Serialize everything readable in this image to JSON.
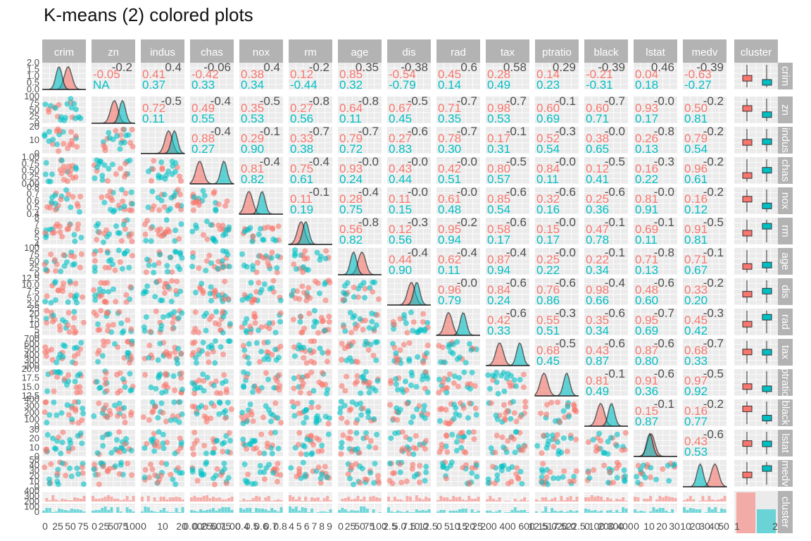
{
  "title": "K-means (2) colored plots",
  "colors": {
    "cluster1": "#F8766D",
    "cluster2": "#00BFC4",
    "panel": "#EBEBEB",
    "strip": "#B3B3B3",
    "strip_text": "#ffffff",
    "grid": "#ffffff",
    "tick_text": "#4D4D4D"
  },
  "chart_data": {
    "type": "scatter-matrix",
    "variables": [
      "crim",
      "zn",
      "indus",
      "chas",
      "nox",
      "rm",
      "age",
      "dis",
      "rad",
      "tax",
      "ptratio",
      "black",
      "lstat",
      "medv",
      "cluster"
    ],
    "column_labels": [
      "crim",
      "zn",
      "indus",
      "chas",
      "nox",
      "rm",
      "age",
      "dis",
      "rad",
      "tax",
      "ptratio",
      "black",
      "lstat",
      "medv",
      "cluster"
    ],
    "row_labels": [
      "crim",
      "zn",
      "indus",
      "chas",
      "nox",
      "rm",
      "age",
      "dis",
      "rad",
      "tax",
      "ptratio",
      "black",
      "lstat",
      "medv",
      "cluster"
    ],
    "series": [
      {
        "name": "1",
        "color": "#F8766D"
      },
      {
        "name": "2",
        "color": "#00BFC4"
      }
    ],
    "x_tick_labels": [
      [
        "0",
        "25",
        "50",
        "75"
      ],
      [
        "0",
        "25",
        "50",
        "75",
        "100"
      ],
      [
        "0",
        "10",
        "20"
      ],
      [
        "0.00",
        "0.25",
        "0.50",
        "0.75",
        "1.00"
      ],
      [
        "0.4",
        "0.5",
        "0.6",
        "0.7",
        "0.8"
      ],
      [
        "4",
        "5",
        "6",
        "7",
        "8",
        "9"
      ],
      [
        "0",
        "25",
        "50",
        "75",
        "100"
      ],
      [
        "2.5",
        "5.0",
        "7.5",
        "10.0",
        "12.5"
      ],
      [
        "0",
        "5",
        "10",
        "15",
        "20",
        "25"
      ],
      [
        "200",
        "400",
        "600"
      ],
      [
        "12.5",
        "15.0",
        "17.5",
        "20.0",
        "22.5"
      ],
      [
        "0",
        "100",
        "200",
        "300",
        "400"
      ],
      [
        "0",
        "10",
        "20",
        "30"
      ],
      [
        "10",
        "20",
        "30",
        "40",
        "50"
      ],
      [
        "1",
        "2"
      ]
    ],
    "y_tick_labels": [
      [
        "0.0",
        "0.5",
        "1.0",
        "1.5",
        "2.0"
      ],
      [
        "0",
        "25",
        "50",
        "75",
        "100"
      ],
      [
        "0",
        "10",
        "20"
      ],
      [
        "0.00",
        "0.25",
        "0.50",
        "0.75",
        "1.00"
      ],
      [
        "0.4",
        "0.5",
        "0.6",
        "0.7",
        "0.8"
      ],
      [
        "4",
        "5",
        "6",
        "7",
        "8"
      ],
      [
        "0",
        "25",
        "50",
        "75",
        "100"
      ],
      [
        "2.5",
        "5.0",
        "7.5",
        "10.0",
        "12.5"
      ],
      [
        "0",
        "5",
        "10",
        "15",
        "20",
        "25"
      ],
      [
        "200",
        "300",
        "400",
        "500",
        "600",
        "700"
      ],
      [
        "12.5",
        "15.0",
        "17.5",
        "20.0"
      ],
      [
        "0",
        "100",
        "200",
        "300",
        "400"
      ],
      [
        "0",
        "10",
        "20",
        "30"
      ],
      [
        "0",
        "10",
        "20",
        "30",
        "40",
        "50"
      ],
      [
        "0",
        "100",
        "200",
        "300",
        "400"
      ]
    ],
    "correlation_labels": [
      {
        "row": 0,
        "col": 1,
        "corr": "-0.2",
        "c1": "-0.05",
        "c2": "NA"
      },
      {
        "row": 0,
        "col": 2,
        "corr": "0.4",
        "c1": "0.41",
        "c2": "0.37"
      },
      {
        "row": 0,
        "col": 3,
        "corr": "-0.06",
        "c1": "-0.42",
        "c2": "0.33"
      },
      {
        "row": 0,
        "col": 4,
        "corr": "0.4",
        "c1": "0.38",
        "c2": "0.34"
      },
      {
        "row": 0,
        "col": 5,
        "corr": "-0.2",
        "c1": "0.12",
        "c2": "-0.44"
      },
      {
        "row": 0,
        "col": 6,
        "corr": "0.35",
        "c1": "0.85",
        "c2": "0.32"
      },
      {
        "row": 0,
        "col": 7,
        "corr": "-0.38",
        "c1": "-0.54",
        "c2": "-0.79"
      },
      {
        "row": 0,
        "col": 8,
        "corr": "0.6",
        "c1": "0.45",
        "c2": "0.14"
      },
      {
        "row": 0,
        "col": 9,
        "corr": "0.58",
        "c1": "0.28",
        "c2": "0.49"
      },
      {
        "row": 0,
        "col": 10,
        "corr": "0.29",
        "c1": "0.14",
        "c2": "0.23"
      },
      {
        "row": 0,
        "col": 11,
        "corr": "-0.39",
        "c1": "-0.21",
        "c2": "-0.31"
      },
      {
        "row": 0,
        "col": 12,
        "corr": "0.46",
        "c1": "0.04",
        "c2": "0.18"
      },
      {
        "row": 0,
        "col": 13,
        "corr": "-0.39",
        "c1": "-0.63",
        "c2": "-0.27"
      }
    ]
  }
}
